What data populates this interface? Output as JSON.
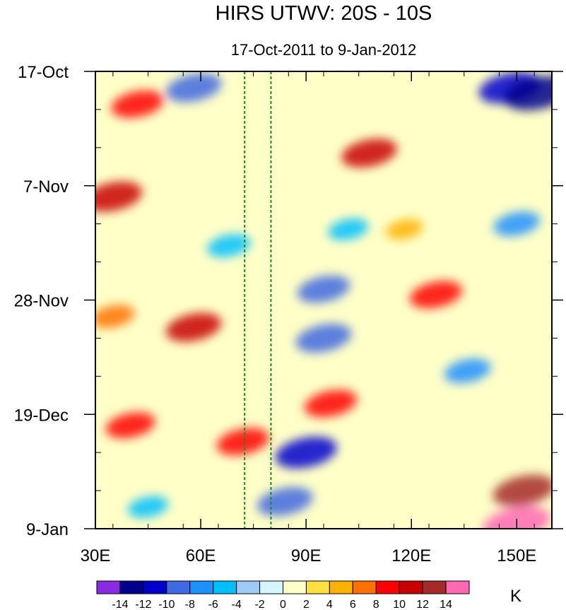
{
  "chart_data": {
    "type": "heatmap",
    "title": "HIRS UTWV: 20S - 10S",
    "subtitle": "17-Oct-2011 to 9-Jan-2012",
    "xlabel": "",
    "ylabel": "",
    "x_range": [
      30,
      160
    ],
    "x_ticks": [
      {
        "value": 30,
        "label": "30E"
      },
      {
        "value": 60,
        "label": "60E"
      },
      {
        "value": 90,
        "label": "90E"
      },
      {
        "value": 120,
        "label": "120E"
      },
      {
        "value": 150,
        "label": "150E"
      }
    ],
    "y_range_days": [
      0,
      84
    ],
    "y_ticks": [
      {
        "value": 0,
        "label": "17-Oct"
      },
      {
        "value": 21,
        "label": "7-Nov"
      },
      {
        "value": 42,
        "label": "28-Nov"
      },
      {
        "value": 63,
        "label": "19-Dec"
      },
      {
        "value": 84,
        "label": "9-Jan"
      }
    ],
    "reference_lines_lon": [
      72.5,
      80
    ],
    "colorbar": {
      "unit": "K",
      "levels": [
        -14,
        -12,
        -10,
        -8,
        -6,
        -4,
        -2,
        0,
        2,
        4,
        6,
        8,
        10,
        12,
        14
      ],
      "labels": [
        "-14",
        "-12",
        "-10",
        "-8",
        "-6",
        "-4",
        "-2",
        "0",
        "2",
        "4",
        "6",
        "8",
        "10",
        "12",
        "14"
      ],
      "colors": [
        "#8A2BE2",
        "#00008B",
        "#0000CD",
        "#4169E1",
        "#1E90FF",
        "#00BFFF",
        "#9CCBF7",
        "#D6F5FF",
        "#FFFFC8",
        "#FFE040",
        "#FFB000",
        "#FF7000",
        "#FF0000",
        "#C80000",
        "#A52A2A",
        "#FF69B4"
      ]
    },
    "features": [
      {
        "lon": 42,
        "day": 6,
        "value": 9,
        "note": "positive band upper left"
      },
      {
        "lon": 35,
        "day": 23,
        "value": 11
      },
      {
        "lon": 108,
        "day": 15,
        "value": 10
      },
      {
        "lon": 58,
        "day": 47,
        "value": 10
      },
      {
        "lon": 127,
        "day": 41,
        "value": 9
      },
      {
        "lon": 72,
        "day": 68,
        "value": 9
      },
      {
        "lon": 97,
        "day": 61,
        "value": 9
      },
      {
        "lon": 152,
        "day": 77,
        "value": 12
      },
      {
        "lon": 150,
        "day": 83,
        "value": 14
      },
      {
        "lon": 148,
        "day": 3,
        "value": -12
      },
      {
        "lon": 156,
        "day": 4,
        "value": -14
      },
      {
        "lon": 58,
        "day": 3,
        "value": -10
      },
      {
        "lon": 95,
        "day": 49,
        "value": -10
      },
      {
        "lon": 90,
        "day": 70,
        "value": -12
      },
      {
        "lon": 84,
        "day": 79,
        "value": -10
      },
      {
        "lon": 95,
        "day": 40,
        "value": -9
      },
      {
        "lon": 68,
        "day": 32,
        "value": -6
      },
      {
        "lon": 150,
        "day": 28,
        "value": -7
      },
      {
        "lon": 136,
        "day": 55,
        "value": -7
      },
      {
        "lon": 35,
        "day": 45,
        "value": 6
      },
      {
        "lon": 40,
        "day": 65,
        "value": 8
      },
      {
        "lon": 118,
        "day": 29,
        "value": 4
      },
      {
        "lon": 102,
        "day": 29,
        "value": -5
      },
      {
        "lon": 45,
        "day": 80,
        "value": -5
      }
    ]
  }
}
